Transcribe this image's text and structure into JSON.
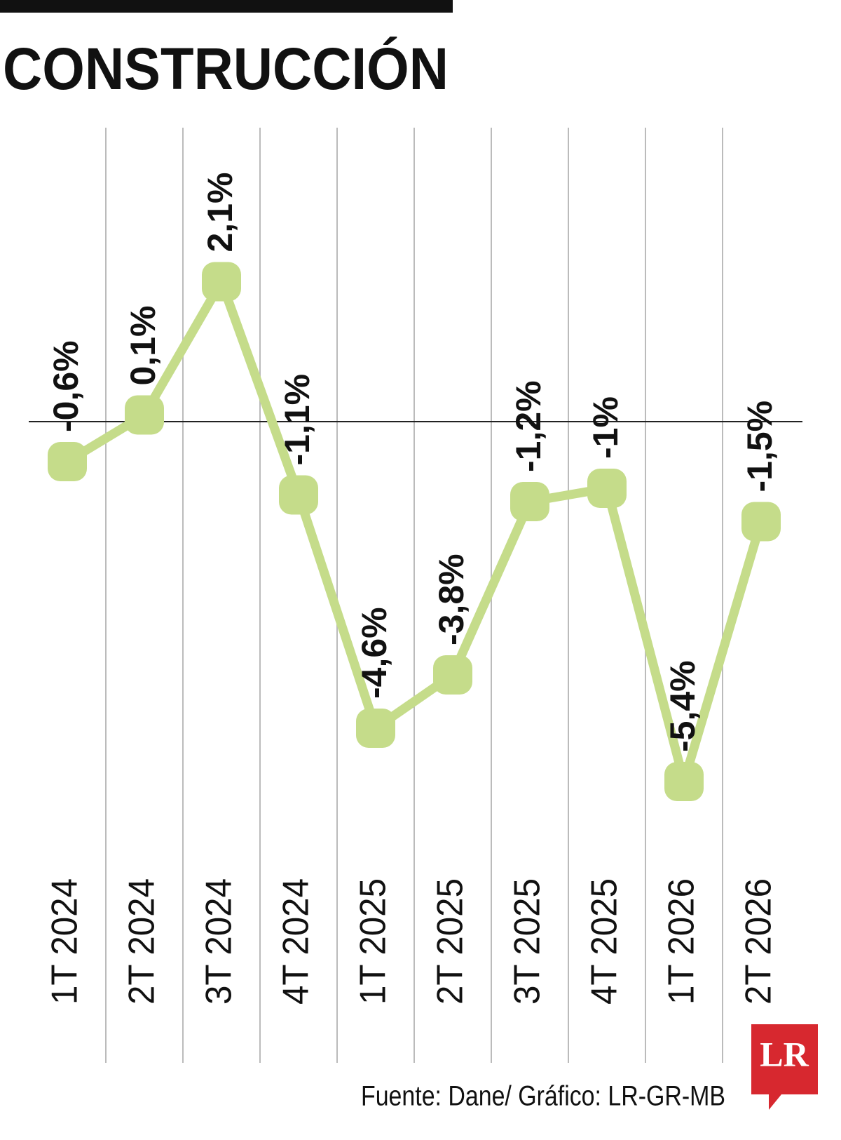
{
  "chart_data": {
    "type": "line",
    "title": "CONSTRUCCIÓN",
    "categories": [
      "1T 2024",
      "2T 2024",
      "3T 2024",
      "4T 2024",
      "1T 2025",
      "2T 2025",
      "3T 2025",
      "4T 2025",
      "1T 2026",
      "2T 2026"
    ],
    "series": [
      {
        "name": "Construcción",
        "color": "#c5dc8a",
        "values": [
          -0.6,
          0.1,
          2.1,
          -1.1,
          -4.6,
          -3.8,
          -1.2,
          -1,
          -5.4,
          -1.5
        ],
        "value_labels": [
          "-0,6%",
          "0,1%",
          "2,1%",
          "-1,1%",
          "-4,6%",
          "-3,8%",
          "-1,2%",
          "-1%",
          "-5,4%",
          "-1,5%"
        ]
      }
    ],
    "ylim": [
      -6,
      4
    ],
    "source": "Fuente: Dane/ Gráfico: LR-GR-MB",
    "logo": "LR"
  }
}
